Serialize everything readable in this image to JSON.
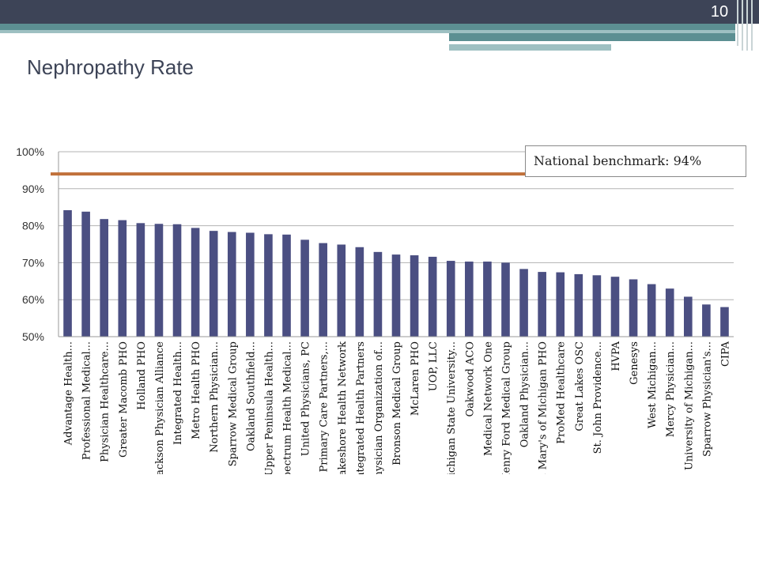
{
  "slide": {
    "number": "10",
    "title": "Nephropathy Rate",
    "callout": "National benchmark: 94%",
    "colors": {
      "bar": "#4b4f82",
      "benchmark": "#c0703a",
      "header": "#3d4457",
      "accent": "#5c8f92"
    }
  },
  "chart_data": {
    "type": "bar",
    "ylim": [
      0.5,
      1.0
    ],
    "yticks": [
      {
        "value": 0.5,
        "label": "50%"
      },
      {
        "value": 0.6,
        "label": "60%"
      },
      {
        "value": 0.7,
        "label": "70%"
      },
      {
        "value": 0.8,
        "label": "80%"
      },
      {
        "value": 0.9,
        "label": "90%"
      },
      {
        "value": 1.0,
        "label": "100%"
      }
    ],
    "grid": true,
    "benchmark": 0.94,
    "categories": [
      "Advantage Health...",
      "Professional Medical...",
      "Physician Healthcare...",
      "Greater Macomb PHO",
      "Holland PHO",
      "Jackson Physician Alliance",
      "Integrated Health...",
      "Metro Health PHO",
      "Northern Physician...",
      "Sparrow Medical Group",
      "Oakland Southfield...",
      "Upper Peninsula Health...",
      "Spectrum Health Medical...",
      "United Physicians, PC",
      "Primary Care Partners,...",
      "Lakeshore Health Network",
      "Integrated Health Partners",
      "Physician Organization of...",
      "Bronson Medical Group",
      "McLaren PHO",
      "UOP, LLC",
      "Michigan State University...",
      "Oakwood ACO",
      "Medical Network One",
      "Henry Ford Medical Group",
      "Oakland Physician...",
      "St. Mary's of Michigan PHO",
      "ProMed Healthcare",
      "Great Lakes OSC",
      "St. John Providence...",
      "HVPA",
      "Genesys",
      "West Michigan...",
      "Mercy Physician...",
      "University of Michigan...",
      "Sparrow Physician's...",
      "CIPA"
    ],
    "values": [
      0.842,
      0.838,
      0.818,
      0.815,
      0.807,
      0.805,
      0.804,
      0.794,
      0.786,
      0.783,
      0.781,
      0.777,
      0.776,
      0.762,
      0.753,
      0.749,
      0.742,
      0.729,
      0.722,
      0.72,
      0.716,
      0.705,
      0.703,
      0.703,
      0.7,
      0.683,
      0.675,
      0.674,
      0.669,
      0.666,
      0.662,
      0.655,
      0.642,
      0.63,
      0.608,
      0.587,
      0.58
    ]
  }
}
